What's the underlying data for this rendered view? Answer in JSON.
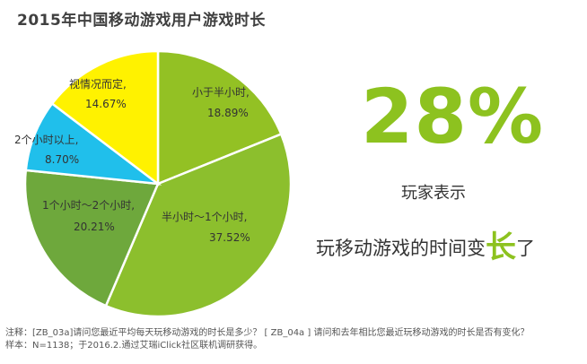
{
  "chart_data": {
    "type": "pie",
    "title": "2015年中国移动游戏用户游戏时长",
    "slices": [
      {
        "label": "小于半小时,",
        "value_text": "18.89%",
        "value": 18.89,
        "color": "#93c124"
      },
      {
        "label": "半小时～1个小时,",
        "value_text": "37.52%",
        "value": 37.52,
        "color": "#8cbf2d"
      },
      {
        "label": "1个小时～2个小时,",
        "value_text": "20.21%",
        "value": 20.21,
        "color": "#6ea83c"
      },
      {
        "label": "2个小时以上,",
        "value_text": "8.70%",
        "value": 8.7,
        "color": "#20bfeb"
      },
      {
        "label": "视情况而定,",
        "value_text": "14.67%",
        "value": 14.67,
        "color": "#fff200"
      }
    ]
  },
  "highlight": {
    "percent": "28%",
    "line1": "玩家表示",
    "line2_pre": "玩移动游戏的时间变",
    "line2_emph": "长",
    "line2_post": "了"
  },
  "notes": {
    "line1": "注释：[ZB_03a]请问您最近平均每天玩移动游戏的时长是多少？ [ ZB_04a ] 请问和去年相比您最近玩移动游戏的时长是否有变化？",
    "line2": "样本：N=1138；于2016.2.通过艾瑞iClick社区联机调研获得。"
  }
}
